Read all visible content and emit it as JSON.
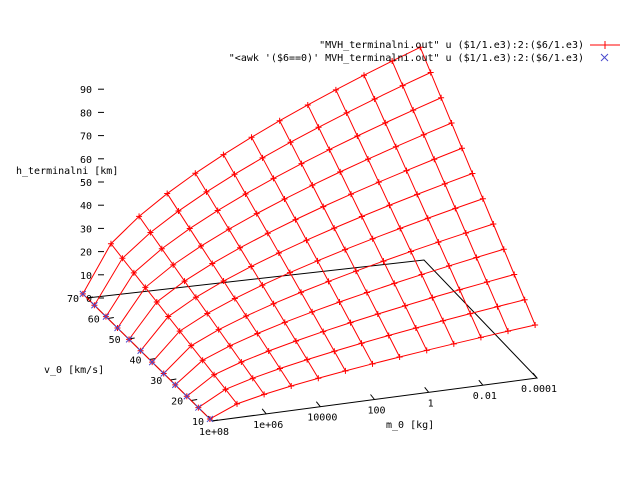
{
  "chart_data": {
    "type": "surface",
    "z_label": "h_terminalni [km]",
    "y_label": "v_0 [km/s]",
    "x_label": "m_0 [kg]",
    "z_ticks": [
      0,
      10,
      20,
      30,
      40,
      50,
      60,
      70,
      80,
      90
    ],
    "y_ticks": [
      10,
      20,
      30,
      40,
      50,
      60,
      70
    ],
    "x_tick_labels": [
      "1e+08",
      "1e+06",
      "10000",
      "100",
      "1",
      "0.01",
      "0.0001"
    ],
    "x_tick_exponents": [
      8,
      6,
      4,
      2,
      0,
      -2,
      -4
    ],
    "x_scale": "log",
    "legend_position": "top-right",
    "grid": false,
    "series": [
      {
        "name": "\"MVH_terminalni.out\" u ($1/1.e3):2:($6/1.e3)",
        "style": "red wireframe surface with + markers",
        "color": "#ff0000"
      },
      {
        "name": "\"<awk '($6==0)' MVH_terminalni.out\" u ($1/1.e3):2:($6/1.e3)",
        "style": "blue x markers",
        "color": "#4a4acd"
      }
    ],
    "surface_model": {
      "log_m0_range": [
        -4,
        8
      ],
      "v0_range": [
        11,
        72
      ],
      "h_at_min_m0_min_v": 22,
      "h_at_min_m0_max_v": 90,
      "h_at_max_m0": 0
    }
  }
}
